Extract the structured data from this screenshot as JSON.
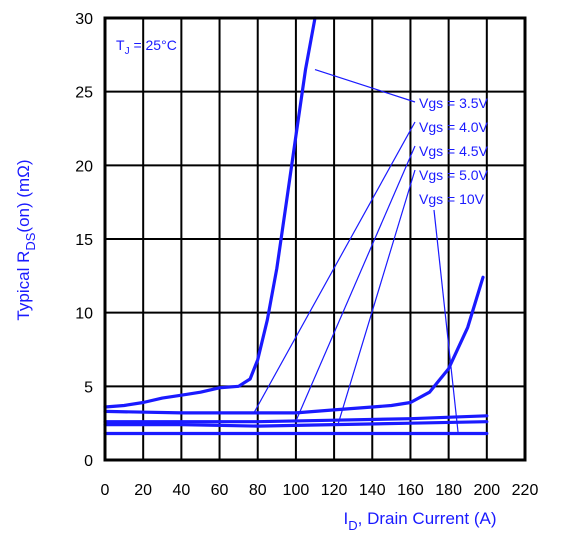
{
  "chart_data": {
    "type": "line",
    "xlabel_prefix": "I",
    "xlabel_sub": "D",
    "xlabel_rest": ", Drain Current (A)",
    "ylabel_prefix": "Typical R",
    "ylabel_sub": "DS",
    "ylabel_rest": "(on) (mΩ)",
    "annotation": {
      "prefix": "T",
      "sub": "J",
      "rest": " = 25°C"
    },
    "xlim": [
      0,
      220
    ],
    "ylim": [
      0,
      30
    ],
    "xticks": [
      "0",
      "20",
      "40",
      "60",
      "80",
      "100",
      "120",
      "140",
      "160",
      "180",
      "200",
      "220"
    ],
    "yticks": [
      "0",
      "5",
      "10",
      "15",
      "20",
      "25",
      "30"
    ],
    "grid": true,
    "color": "#1a1aff",
    "series": [
      {
        "name": "Vgs = 3.5V",
        "x": [
          0,
          10,
          20,
          30,
          40,
          50,
          60,
          70,
          76,
          80,
          85,
          90,
          95,
          100,
          105,
          110
        ],
        "y": [
          3.6,
          3.7,
          3.9,
          4.2,
          4.4,
          4.6,
          4.9,
          5.0,
          5.5,
          6.8,
          9.5,
          13.0,
          17.5,
          22.0,
          26.5,
          30.0
        ],
        "leader_from": [
          110,
          26.5
        ]
      },
      {
        "name": "Vgs = 4.0V",
        "x": [
          0,
          40,
          80,
          100,
          120,
          140,
          150,
          160,
          170,
          180,
          190,
          198
        ],
        "y": [
          3.3,
          3.2,
          3.2,
          3.2,
          3.4,
          3.6,
          3.7,
          3.9,
          4.6,
          6.2,
          9.0,
          12.4
        ],
        "leader_from": [
          78,
          3.2
        ]
      },
      {
        "name": "Vgs = 4.5V",
        "x": [
          0,
          40,
          80,
          120,
          160,
          200
        ],
        "y": [
          2.6,
          2.6,
          2.6,
          2.7,
          2.8,
          3.0
        ],
        "leader_from": [
          100,
          2.65
        ]
      },
      {
        "name": "Vgs = 5.0V",
        "x": [
          0,
          40,
          80,
          120,
          160,
          200
        ],
        "y": [
          2.4,
          2.4,
          2.3,
          2.4,
          2.5,
          2.6
        ],
        "leader_from": [
          122,
          2.4
        ]
      },
      {
        "name": "Vgs = 10V",
        "x": [
          0,
          50,
          100,
          150,
          200
        ],
        "y": [
          1.8,
          1.8,
          1.8,
          1.8,
          1.8
        ],
        "leader_from": [
          185,
          1.8
        ]
      }
    ]
  }
}
